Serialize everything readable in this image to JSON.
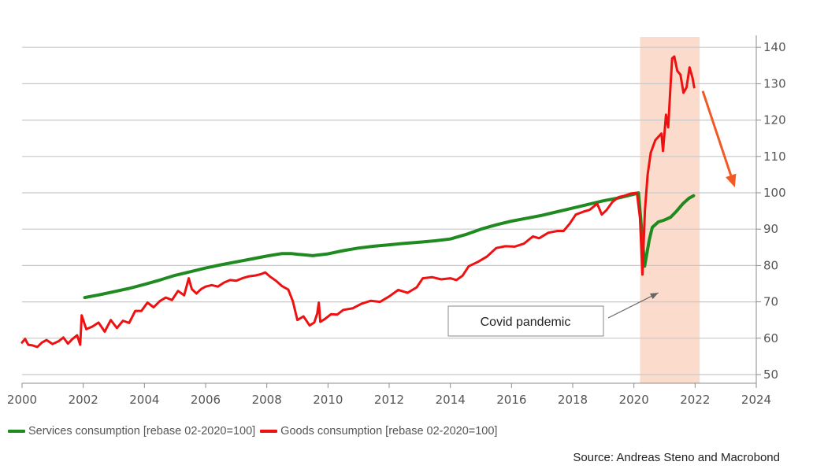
{
  "chart_data": {
    "type": "line",
    "x_ticks": [
      "2000",
      "2002",
      "2004",
      "2006",
      "2008",
      "2010",
      "2012",
      "2014",
      "2016",
      "2018",
      "2020",
      "2022",
      "2024"
    ],
    "y_ticks": [
      "50",
      "60",
      "70",
      "80",
      "90",
      "100",
      "110",
      "120",
      "130",
      "140"
    ],
    "xlim": [
      2000,
      2024
    ],
    "ylim": [
      48,
      143
    ],
    "y_axis_side": "right",
    "grid": true,
    "shaded_region": {
      "x": [
        2020.2,
        2022.15
      ],
      "color": "#fbdccc"
    },
    "annotation": {
      "text": "Covid pandemic",
      "arrow_to": [
        2020.8,
        72.5
      ]
    },
    "forecast_arrow": {
      "from": [
        2022.25,
        128
      ],
      "to": [
        2023.3,
        101.5
      ],
      "color": "#f15a24"
    },
    "series": [
      {
        "name": "Services consumption [rebase 02-2020=100]",
        "color": "#1f8a1f",
        "points": [
          [
            2002.05,
            71.2
          ],
          [
            2002.5,
            71.9
          ],
          [
            2003,
            72.8
          ],
          [
            2003.5,
            73.7
          ],
          [
            2004,
            74.8
          ],
          [
            2004.5,
            76.0
          ],
          [
            2005,
            77.3
          ],
          [
            2005.5,
            78.3
          ],
          [
            2006,
            79.3
          ],
          [
            2006.5,
            80.2
          ],
          [
            2007,
            81.0
          ],
          [
            2007.5,
            81.8
          ],
          [
            2008,
            82.6
          ],
          [
            2008.5,
            83.3
          ],
          [
            2008.8,
            83.3
          ],
          [
            2009,
            83.1
          ],
          [
            2009.5,
            82.7
          ],
          [
            2010,
            83.2
          ],
          [
            2010.5,
            84.1
          ],
          [
            2011,
            84.8
          ],
          [
            2011.5,
            85.3
          ],
          [
            2012,
            85.7
          ],
          [
            2012.5,
            86.1
          ],
          [
            2013,
            86.4
          ],
          [
            2013.5,
            86.8
          ],
          [
            2014,
            87.3
          ],
          [
            2014.5,
            88.5
          ],
          [
            2015,
            90.0
          ],
          [
            2015.5,
            91.2
          ],
          [
            2016,
            92.2
          ],
          [
            2016.5,
            93.0
          ],
          [
            2017,
            93.8
          ],
          [
            2017.5,
            94.8
          ],
          [
            2018,
            95.8
          ],
          [
            2018.5,
            96.8
          ],
          [
            2019,
            97.8
          ],
          [
            2019.5,
            98.6
          ],
          [
            2020.0,
            99.6
          ],
          [
            2020.15,
            100.0
          ],
          [
            2020.25,
            90.0
          ],
          [
            2020.35,
            79.8
          ],
          [
            2020.5,
            87.0
          ],
          [
            2020.6,
            90.5
          ],
          [
            2020.8,
            92.0
          ],
          [
            2021,
            92.5
          ],
          [
            2021.2,
            93.3
          ],
          [
            2021.4,
            95.0
          ],
          [
            2021.6,
            97.0
          ],
          [
            2021.8,
            98.5
          ],
          [
            2021.95,
            99.2
          ]
        ]
      },
      {
        "name": "Goods consumption [rebase 02-2020=100]",
        "color": "#ee1111",
        "points": [
          [
            2000,
            58.8
          ],
          [
            2000.1,
            59.8
          ],
          [
            2000.2,
            58.2
          ],
          [
            2000.35,
            58.0
          ],
          [
            2000.5,
            57.6
          ],
          [
            2000.65,
            58.8
          ],
          [
            2000.8,
            59.5
          ],
          [
            2001,
            58.4
          ],
          [
            2001.2,
            59.2
          ],
          [
            2001.35,
            60.2
          ],
          [
            2001.5,
            58.5
          ],
          [
            2001.65,
            59.8
          ],
          [
            2001.8,
            60.8
          ],
          [
            2001.9,
            58.2
          ],
          [
            2001.95,
            66.3
          ],
          [
            2002.1,
            62.5
          ],
          [
            2002.3,
            63.2
          ],
          [
            2002.5,
            64.3
          ],
          [
            2002.7,
            61.8
          ],
          [
            2002.9,
            65.0
          ],
          [
            2003.1,
            62.8
          ],
          [
            2003.3,
            64.8
          ],
          [
            2003.5,
            64.2
          ],
          [
            2003.7,
            67.5
          ],
          [
            2003.9,
            67.5
          ],
          [
            2004.1,
            69.8
          ],
          [
            2004.3,
            68.5
          ],
          [
            2004.5,
            70.2
          ],
          [
            2004.7,
            71.2
          ],
          [
            2004.9,
            70.5
          ],
          [
            2005.1,
            73.0
          ],
          [
            2005.3,
            71.8
          ],
          [
            2005.45,
            76.5
          ],
          [
            2005.55,
            73.5
          ],
          [
            2005.7,
            72.3
          ],
          [
            2005.85,
            73.5
          ],
          [
            2006.0,
            74.2
          ],
          [
            2006.2,
            74.6
          ],
          [
            2006.4,
            74.2
          ],
          [
            2006.6,
            75.3
          ],
          [
            2006.8,
            76.0
          ],
          [
            2007.0,
            75.8
          ],
          [
            2007.2,
            76.5
          ],
          [
            2007.4,
            77.0
          ],
          [
            2007.6,
            77.2
          ],
          [
            2007.8,
            77.6
          ],
          [
            2007.95,
            78.1
          ],
          [
            2008.1,
            77.0
          ],
          [
            2008.3,
            75.8
          ],
          [
            2008.5,
            74.3
          ],
          [
            2008.7,
            73.4
          ],
          [
            2008.85,
            70.2
          ],
          [
            2009.0,
            65.0
          ],
          [
            2009.2,
            66.0
          ],
          [
            2009.4,
            63.5
          ],
          [
            2009.55,
            64.3
          ],
          [
            2009.65,
            66.8
          ],
          [
            2009.7,
            69.8
          ],
          [
            2009.75,
            64.5
          ],
          [
            2009.9,
            65.3
          ],
          [
            2010.1,
            66.6
          ],
          [
            2010.3,
            66.5
          ],
          [
            2010.5,
            67.8
          ],
          [
            2010.8,
            68.2
          ],
          [
            2011.1,
            69.5
          ],
          [
            2011.4,
            70.3
          ],
          [
            2011.7,
            70.0
          ],
          [
            2012.0,
            71.5
          ],
          [
            2012.3,
            73.3
          ],
          [
            2012.6,
            72.5
          ],
          [
            2012.9,
            74.0
          ],
          [
            2013.1,
            76.5
          ],
          [
            2013.4,
            76.8
          ],
          [
            2013.7,
            76.2
          ],
          [
            2014.0,
            76.5
          ],
          [
            2014.2,
            76.0
          ],
          [
            2014.4,
            77.2
          ],
          [
            2014.6,
            79.8
          ],
          [
            2014.9,
            81.0
          ],
          [
            2015.2,
            82.5
          ],
          [
            2015.5,
            84.8
          ],
          [
            2015.8,
            85.3
          ],
          [
            2016.1,
            85.2
          ],
          [
            2016.4,
            86.0
          ],
          [
            2016.7,
            88.0
          ],
          [
            2016.9,
            87.5
          ],
          [
            2017.2,
            89.0
          ],
          [
            2017.5,
            89.5
          ],
          [
            2017.7,
            89.5
          ],
          [
            2017.9,
            91.5
          ],
          [
            2018.1,
            94.0
          ],
          [
            2018.35,
            94.8
          ],
          [
            2018.55,
            95.3
          ],
          [
            2018.8,
            97.0
          ],
          [
            2018.95,
            94.0
          ],
          [
            2019.1,
            95.2
          ],
          [
            2019.3,
            97.5
          ],
          [
            2019.5,
            98.8
          ],
          [
            2019.7,
            99.2
          ],
          [
            2019.9,
            99.8
          ],
          [
            2020.1,
            100.0
          ],
          [
            2020.2,
            93.0
          ],
          [
            2020.28,
            77.5
          ],
          [
            2020.36,
            95.0
          ],
          [
            2020.45,
            105.0
          ],
          [
            2020.55,
            111.0
          ],
          [
            2020.7,
            114.5
          ],
          [
            2020.9,
            116.3
          ],
          [
            2020.95,
            111.5
          ],
          [
            2021.05,
            121.5
          ],
          [
            2021.12,
            118.0
          ],
          [
            2021.2,
            130.0
          ],
          [
            2021.25,
            137.0
          ],
          [
            2021.32,
            137.5
          ],
          [
            2021.42,
            133.5
          ],
          [
            2021.52,
            132.5
          ],
          [
            2021.62,
            127.5
          ],
          [
            2021.72,
            129.0
          ],
          [
            2021.82,
            134.5
          ],
          [
            2021.92,
            131.5
          ],
          [
            2021.97,
            129.0
          ]
        ]
      }
    ]
  },
  "legend": {
    "services_label": "Services consumption [rebase 02-2020=100]",
    "goods_label": "Goods consumption [rebase 02-2020=100]",
    "services_color": "#1f8a1f",
    "goods_color": "#ee1111"
  },
  "source_text": "Source: Andreas Steno and Macrobond"
}
